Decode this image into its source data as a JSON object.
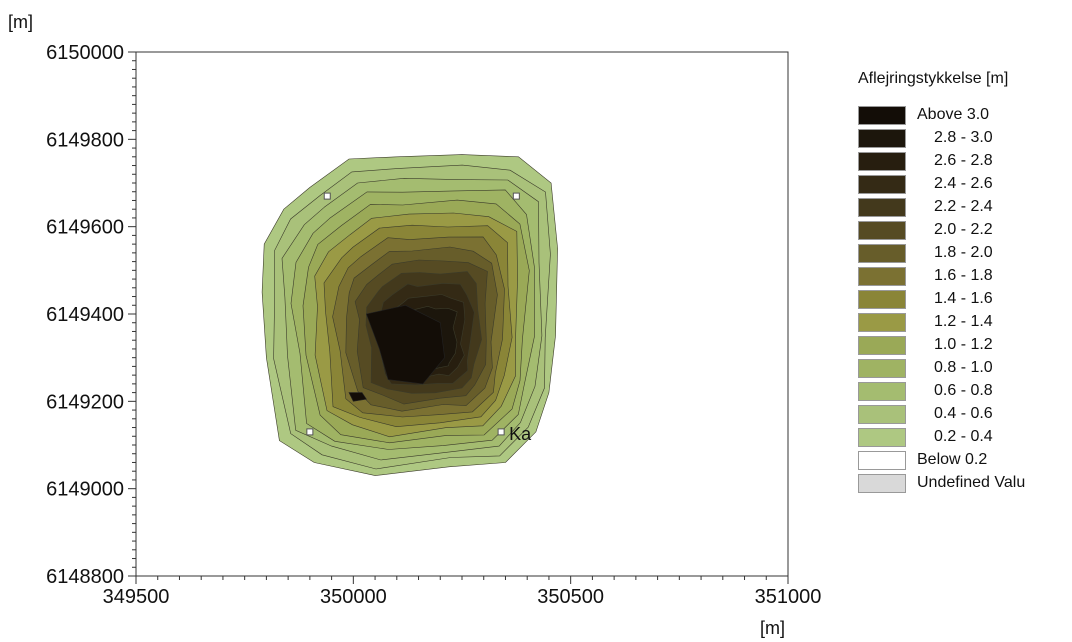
{
  "chart_data": {
    "type": "heatmap",
    "subtype": "filled-contour-map",
    "x_unit_label": "[m]",
    "y_unit_label": "[m]",
    "xlim": [
      349500,
      351000
    ],
    "ylim": [
      6148800,
      6150000
    ],
    "x_ticks": [
      "349500",
      "350000",
      "350500",
      "351000"
    ],
    "y_ticks": [
      "6150000",
      "6149800",
      "6149600",
      "6149400",
      "6149200",
      "6149000",
      "6148800"
    ],
    "grid": false,
    "contour_center": [
      350180,
      6149330
    ],
    "contour_levels": [
      0.2,
      0.4,
      0.6,
      0.8,
      1.0,
      1.2,
      1.4,
      1.6,
      1.8,
      2.0,
      2.2,
      2.4,
      2.6,
      2.8,
      3.0
    ],
    "outer_boundary": [
      [
        349900,
        6149690
      ],
      [
        349990,
        6149755
      ],
      [
        350100,
        6149760
      ],
      [
        350250,
        6149765
      ],
      [
        350380,
        6149760
      ],
      [
        350455,
        6149700
      ],
      [
        350470,
        6149550
      ],
      [
        350465,
        6149350
      ],
      [
        350450,
        6149220
      ],
      [
        350420,
        6149130
      ],
      [
        350350,
        6149060
      ],
      [
        350220,
        6149050
      ],
      [
        350050,
        6149030
      ],
      [
        349910,
        6149060
      ],
      [
        349830,
        6149110
      ],
      [
        349800,
        6149300
      ],
      [
        349790,
        6149450
      ],
      [
        349795,
        6149560
      ],
      [
        349840,
        6149640
      ]
    ],
    "peak_regions": [
      [
        [
          350030,
          6149400
        ],
        [
          350120,
          6149420
        ],
        [
          350200,
          6149380
        ],
        [
          350210,
          6149300
        ],
        [
          350160,
          6149240
        ],
        [
          350080,
          6149250
        ],
        [
          350060,
          6149320
        ]
      ],
      [
        [
          349990,
          6149220
        ],
        [
          350020,
          6149220
        ],
        [
          350030,
          6149205
        ],
        [
          350000,
          6149200
        ]
      ]
    ],
    "points": [
      {
        "label": "",
        "x": 349940,
        "y": 6149670
      },
      {
        "label": "",
        "x": 350375,
        "y": 6149670
      },
      {
        "label": "",
        "x": 349900,
        "y": 6149130
      },
      {
        "label": "Ka",
        "x": 350340,
        "y": 6149130
      }
    ],
    "legend": {
      "title": "Aflejringstykkelse [m]",
      "placement": "right",
      "items": [
        {
          "label": "Above 3.0",
          "color": "#130d07",
          "indent": false
        },
        {
          "label": "2.8 - 3.0",
          "color": "#1c160c",
          "indent": true
        },
        {
          "label": "2.6 - 2.8",
          "color": "#271e0f",
          "indent": true
        },
        {
          "label": "2.4 - 2.6",
          "color": "#342a15",
          "indent": true
        },
        {
          "label": "2.2 - 2.4",
          "color": "#43391c",
          "indent": true
        },
        {
          "label": "2.0 - 2.2",
          "color": "#564b23",
          "indent": true
        },
        {
          "label": "1.8 - 2.0",
          "color": "#675d2a",
          "indent": true
        },
        {
          "label": "1.6 - 1.8",
          "color": "#7b7132",
          "indent": true
        },
        {
          "label": "1.4 - 1.6",
          "color": "#8a8537",
          "indent": true
        },
        {
          "label": "1.2 - 1.4",
          "color": "#9a9a45",
          "indent": true
        },
        {
          "label": "1.0 - 1.2",
          "color": "#9aa957",
          "indent": true
        },
        {
          "label": "0.8 - 1.0",
          "color": "#9fb363",
          "indent": true
        },
        {
          "label": "0.6 - 0.8",
          "color": "#a4bc70",
          "indent": true
        },
        {
          "label": "0.4 - 0.6",
          "color": "#a9c17a",
          "indent": true
        },
        {
          "label": "0.2 - 0.4",
          "color": "#aec882",
          "indent": true
        },
        {
          "label": "Below 0.2",
          "color": "#ffffff",
          "indent": false
        },
        {
          "label": "Undefined Valu",
          "color": "#d9d9d9",
          "indent": false
        }
      ]
    }
  }
}
